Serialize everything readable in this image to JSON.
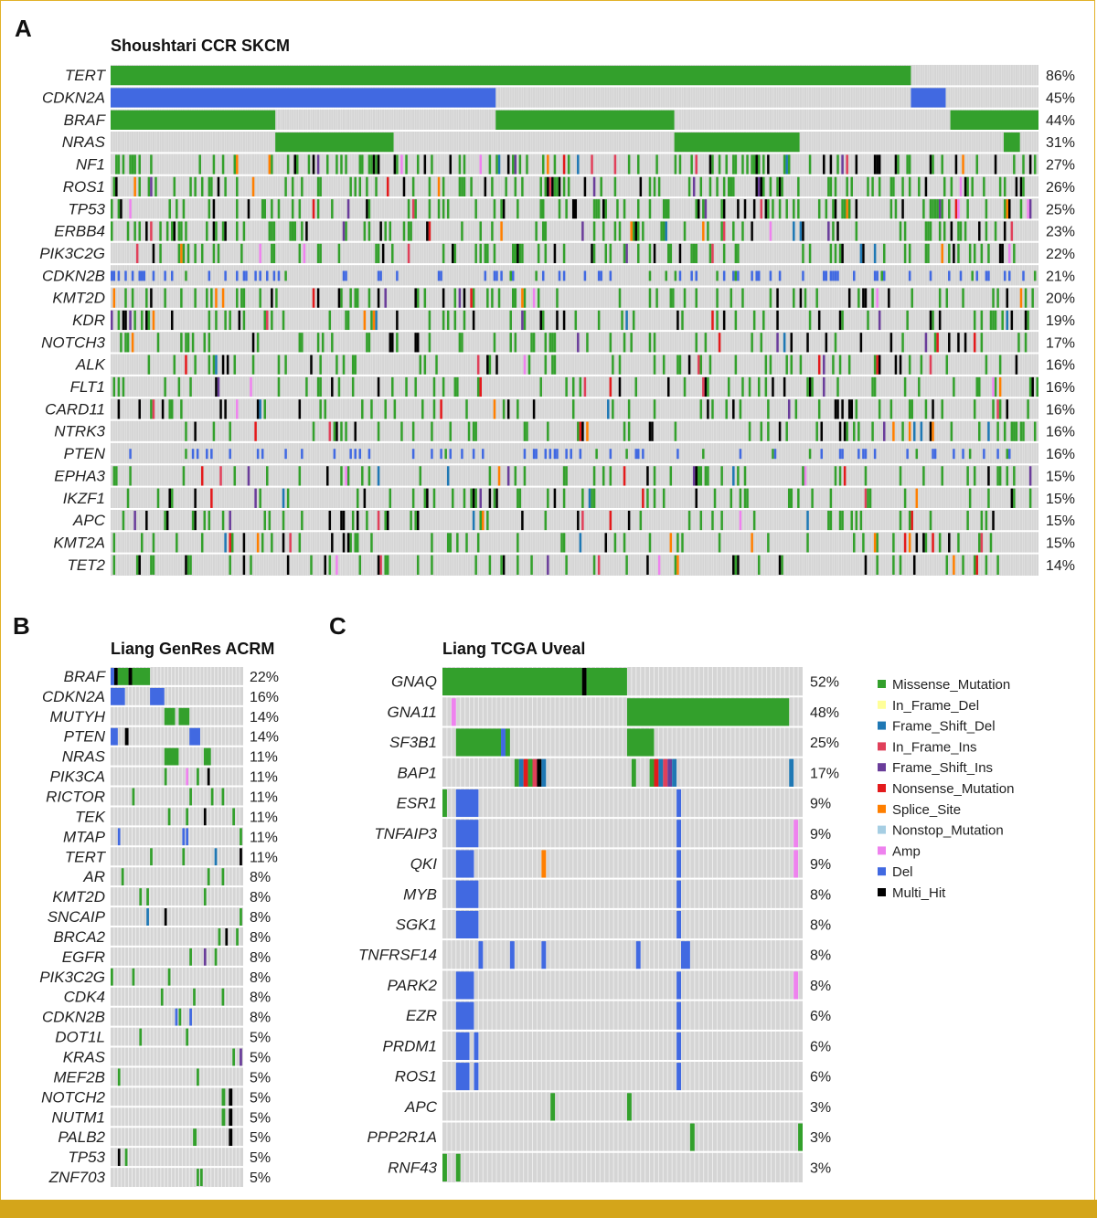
{
  "colors": {
    "background_cell": "#d5d5d5",
    "Missense_Mutation": "#33a02c",
    "In_Frame_Del": "#ffff99",
    "Frame_Shift_Del": "#1f78b4",
    "In_Frame_Ins": "#e0405a",
    "Frame_Shift_Ins": "#6a3d9a",
    "Nonsense_Mutation": "#e31a1c",
    "Splice_Site": "#ff7f00",
    "Nonstop_Mutation": "#a6cee3",
    "Amp": "#ee82ee",
    "Del": "#4169e1",
    "Multi_Hit": "#000000",
    "frame": "#e2b128",
    "bottom_bar": "#d4a51a"
  },
  "legend": {
    "items": [
      {
        "label": "Missense_Mutation",
        "color": "#33a02c"
      },
      {
        "label": "In_Frame_Del",
        "color": "#ffff99"
      },
      {
        "label": "Frame_Shift_Del",
        "color": "#1f78b4"
      },
      {
        "label": "In_Frame_Ins",
        "color": "#e0405a"
      },
      {
        "label": "Frame_Shift_Ins",
        "color": "#6a3d9a"
      },
      {
        "label": "Nonsense_Mutation",
        "color": "#e31a1c"
      },
      {
        "label": "Splice_Site",
        "color": "#ff7f00"
      },
      {
        "label": "Nonstop_Mutation",
        "color": "#a6cee3"
      },
      {
        "label": "Amp",
        "color": "#ee82ee"
      },
      {
        "label": "Del",
        "color": "#4169e1"
      },
      {
        "label": "Multi_Hit",
        "color": "#000000"
      }
    ]
  },
  "chart_data": [
    {
      "type": "heatmap",
      "panel": "A",
      "title": "Shoushtari CCR SKCM",
      "genes": [
        {
          "name": "TERT",
          "pct": "86%"
        },
        {
          "name": "CDKN2A",
          "pct": "45%"
        },
        {
          "name": "BRAF",
          "pct": "44%"
        },
        {
          "name": "NRAS",
          "pct": "31%"
        },
        {
          "name": "NF1",
          "pct": "27%"
        },
        {
          "name": "ROS1",
          "pct": "26%"
        },
        {
          "name": "TP53",
          "pct": "25%"
        },
        {
          "name": "ERBB4",
          "pct": "23%"
        },
        {
          "name": "PIK3C2G",
          "pct": "22%"
        },
        {
          "name": "CDKN2B",
          "pct": "21%"
        },
        {
          "name": "KMT2D",
          "pct": "20%"
        },
        {
          "name": "KDR",
          "pct": "19%"
        },
        {
          "name": "NOTCH3",
          "pct": "17%"
        },
        {
          "name": "ALK",
          "pct": "16%"
        },
        {
          "name": "FLT1",
          "pct": "16%"
        },
        {
          "name": "CARD11",
          "pct": "16%"
        },
        {
          "name": "NTRK3",
          "pct": "16%"
        },
        {
          "name": "PTEN",
          "pct": "16%"
        },
        {
          "name": "EPHA3",
          "pct": "15%"
        },
        {
          "name": "IKZF1",
          "pct": "15%"
        },
        {
          "name": "APC",
          "pct": "15%"
        },
        {
          "name": "KMT2A",
          "pct": "15%"
        },
        {
          "name": "TET2",
          "pct": "14%"
        }
      ]
    },
    {
      "type": "heatmap",
      "panel": "B",
      "title": "Liang GenRes ACRM",
      "genes": [
        {
          "name": "BRAF",
          "pct": "22%"
        },
        {
          "name": "CDKN2A",
          "pct": "16%"
        },
        {
          "name": "MUTYH",
          "pct": "14%"
        },
        {
          "name": "PTEN",
          "pct": "14%"
        },
        {
          "name": "NRAS",
          "pct": "11%"
        },
        {
          "name": "PIK3CA",
          "pct": "11%"
        },
        {
          "name": "RICTOR",
          "pct": "11%"
        },
        {
          "name": "TEK",
          "pct": "11%"
        },
        {
          "name": "MTAP",
          "pct": "11%"
        },
        {
          "name": "TERT",
          "pct": "11%"
        },
        {
          "name": "AR",
          "pct": "8%"
        },
        {
          "name": "KMT2D",
          "pct": "8%"
        },
        {
          "name": "SNCAIP",
          "pct": "8%"
        },
        {
          "name": "BRCA2",
          "pct": "8%"
        },
        {
          "name": "EGFR",
          "pct": "8%"
        },
        {
          "name": "PIK3C2G",
          "pct": "8%"
        },
        {
          "name": "CDK4",
          "pct": "8%"
        },
        {
          "name": "CDKN2B",
          "pct": "8%"
        },
        {
          "name": "DOT1L",
          "pct": "5%"
        },
        {
          "name": "KRAS",
          "pct": "5%"
        },
        {
          "name": "MEF2B",
          "pct": "5%"
        },
        {
          "name": "NOTCH2",
          "pct": "5%"
        },
        {
          "name": "NUTM1",
          "pct": "5%"
        },
        {
          "name": "PALB2",
          "pct": "5%"
        },
        {
          "name": "TP53",
          "pct": "5%"
        },
        {
          "name": "ZNF703",
          "pct": "5%"
        }
      ]
    },
    {
      "type": "heatmap",
      "panel": "C",
      "title": "Liang TCGA Uveal",
      "genes": [
        {
          "name": "GNAQ",
          "pct": "52%"
        },
        {
          "name": "GNA11",
          "pct": "48%"
        },
        {
          "name": "SF3B1",
          "pct": "25%"
        },
        {
          "name": "BAP1",
          "pct": "17%"
        },
        {
          "name": "ESR1",
          "pct": "9%"
        },
        {
          "name": "TNFAIP3",
          "pct": "9%"
        },
        {
          "name": "QKI",
          "pct": "9%"
        },
        {
          "name": "MYB",
          "pct": "8%"
        },
        {
          "name": "SGK1",
          "pct": "8%"
        },
        {
          "name": "TNFRSF14",
          "pct": "8%"
        },
        {
          "name": "PARK2",
          "pct": "8%"
        },
        {
          "name": "EZR",
          "pct": "6%"
        },
        {
          "name": "PRDM1",
          "pct": "6%"
        },
        {
          "name": "ROS1",
          "pct": "6%"
        },
        {
          "name": "APC",
          "pct": "3%"
        },
        {
          "name": "PPP2R1A",
          "pct": "3%"
        },
        {
          "name": "RNF43",
          "pct": "3%"
        }
      ]
    }
  ]
}
